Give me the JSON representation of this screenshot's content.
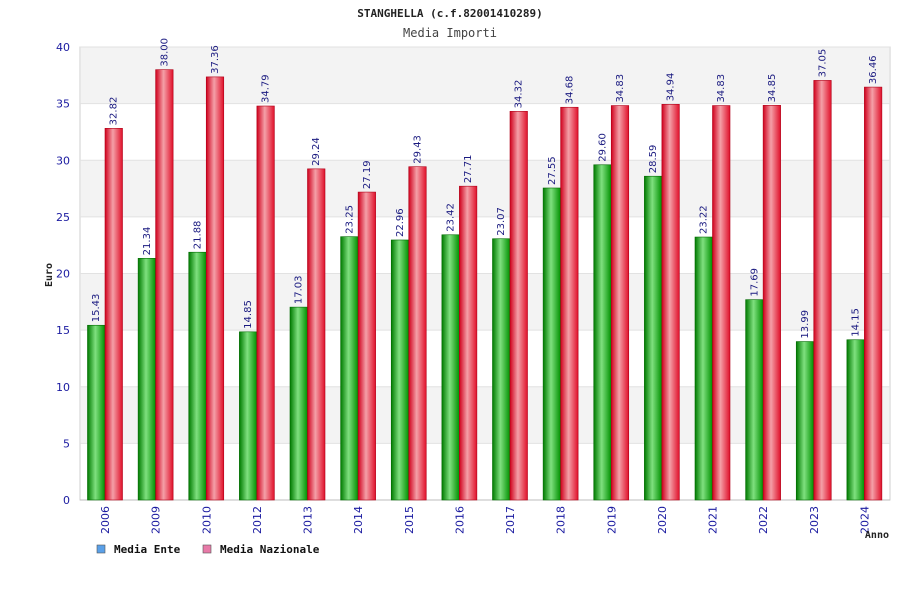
{
  "chart_data": {
    "type": "bar",
    "title": "STANGHELLA (c.f.82001410289)",
    "subtitle": "Media Importi",
    "ylabel": "Euro",
    "xlabel": "Anno",
    "ylim": [
      0,
      40
    ],
    "yticks": [
      0,
      5,
      10,
      15,
      20,
      25,
      30,
      35,
      40
    ],
    "categories": [
      "2006",
      "2009",
      "2010",
      "2012",
      "2013",
      "2014",
      "2015",
      "2016",
      "2017",
      "2018",
      "2019",
      "2020",
      "2021",
      "2022",
      "2023",
      "2024"
    ],
    "series": [
      {
        "name": "Media Ente",
        "color": "#00b000",
        "legend_color": "#5aa0e8",
        "values": [
          15.43,
          21.34,
          21.88,
          14.85,
          17.03,
          23.25,
          22.96,
          23.42,
          23.07,
          27.55,
          29.6,
          28.59,
          23.22,
          17.69,
          13.99,
          14.15
        ],
        "labels": [
          "15.43",
          "21.34",
          "21.88",
          "14.85",
          "17.03",
          "23.25",
          "22.96",
          "23.42",
          "23.07",
          "27.55",
          "29.60",
          "28.59",
          "23.22",
          "17.69",
          "13.99",
          "14.15"
        ]
      },
      {
        "name": "Media Nazionale",
        "color": "#e8102a",
        "legend_color": "#e87aa8",
        "values": [
          32.82,
          38.0,
          37.36,
          34.79,
          29.24,
          27.19,
          29.43,
          27.71,
          34.32,
          34.68,
          34.83,
          34.94,
          34.83,
          34.85,
          37.05,
          36.46
        ],
        "labels": [
          "32.82",
          "38.00",
          "37.36",
          "34.79",
          "29.24",
          "27.19",
          "29.43",
          "27.71",
          "34.32",
          "34.68",
          "34.83",
          "34.94",
          "34.83",
          "34.85",
          "37.05",
          "36.46"
        ]
      }
    ],
    "grid": true,
    "legend_position": "bottom-left"
  }
}
